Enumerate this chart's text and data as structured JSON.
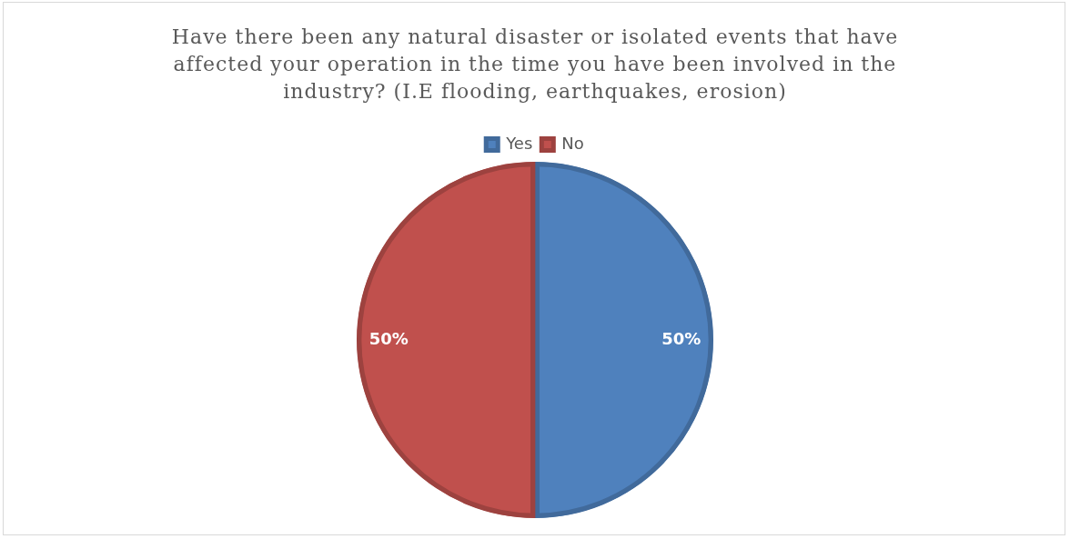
{
  "chart_data": {
    "type": "pie",
    "title": "Have there been any natural disaster or isolated events that have affected your operation in the time you have been involved in the industry? (I.E flooding, earthquakes, erosion)",
    "categories": [
      "Yes",
      "No"
    ],
    "values": [
      50,
      50
    ],
    "colors": [
      "#4f81bd",
      "#c0504d"
    ],
    "value_labels": [
      "50%",
      "50%"
    ],
    "legend": "top"
  }
}
